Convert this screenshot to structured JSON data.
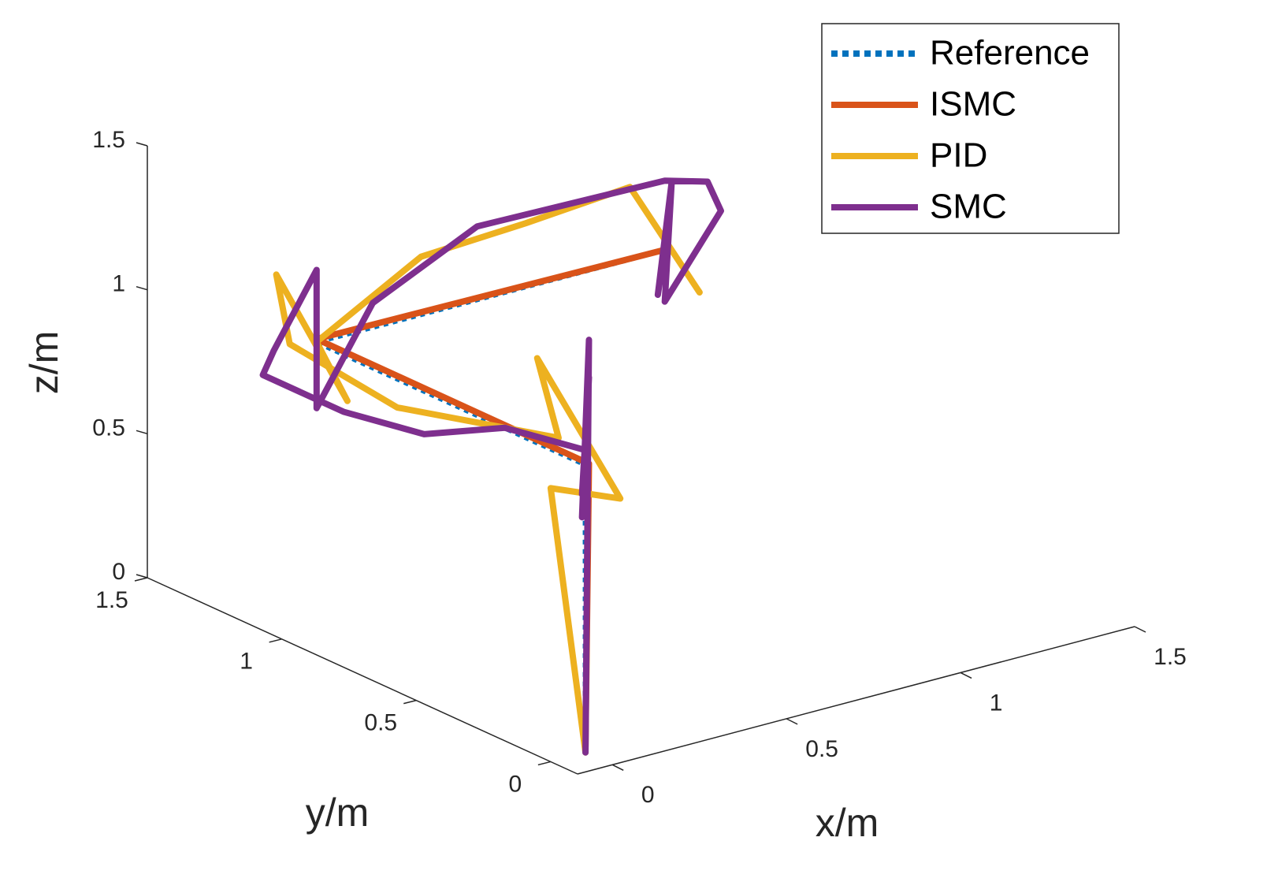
{
  "chart_data": {
    "type": "line3d",
    "xlabel": "x/m",
    "ylabel": "y/m",
    "zlabel": "z/m",
    "xlim": [
      -0.1,
      1.5
    ],
    "ylim": [
      -0.1,
      1.5
    ],
    "zlim": [
      0,
      1.5
    ],
    "xticks": [
      0,
      0.5,
      1,
      1.5
    ],
    "yticks": [
      0,
      0.5,
      1,
      1.5
    ],
    "zticks": [
      0,
      0.5,
      1,
      1.5
    ],
    "grid": false,
    "legend_position": "upper-right",
    "series": [
      {
        "name": "Reference",
        "color": "#0072BD",
        "style": "dotted",
        "x": [
          0,
          0,
          0,
          1
        ],
        "y": [
          0,
          0,
          1,
          1
        ],
        "z": [
          0,
          1,
          1,
          1
        ]
      },
      {
        "name": "ISMC",
        "color": "#D95319",
        "style": "solid",
        "x": [
          0,
          0.01,
          0,
          1
        ],
        "y": [
          0,
          0,
          1,
          1
        ],
        "z": [
          0.02,
          1,
          1.01,
          1
        ]
      },
      {
        "name": "PID",
        "color": "#EDB120",
        "style": "solid",
        "x": [
          0,
          -0.1,
          0.1,
          -0.1,
          0,
          0,
          0,
          0,
          0,
          0.05,
          0,
          0.3,
          0.6,
          0.9,
          1.1
        ],
        "y": [
          0,
          0,
          0,
          0.05,
          0.1,
          0.3,
          0.7,
          1.1,
          1.15,
          0.95,
          1,
          1,
          1,
          1,
          1
        ],
        "z": [
          0,
          0.95,
          0.85,
          1.38,
          1.05,
          1.0,
          0.9,
          0.95,
          1.17,
          0.8,
          1,
          1.2,
          1.22,
          1.25,
          0.82
        ]
      },
      {
        "name": "SMC",
        "color": "#7E2F8E",
        "style": "solid",
        "x": [
          0,
          0.01,
          -0.01,
          0.01,
          -0.01,
          0,
          0,
          0,
          0,
          0,
          0,
          0,
          0,
          0.2,
          0.5,
          1.0,
          1.2,
          1.2,
          1.0,
          1.02,
          0.98,
          1
        ],
        "y": [
          0,
          0,
          0,
          0,
          0,
          0,
          0.3,
          0.6,
          0.9,
          1.2,
          1.16,
          1,
          1,
          1.05,
          1.05,
          1,
          1.1,
          1.05,
          1,
          1,
          1,
          1
        ],
        "z": [
          0,
          1.43,
          0.82,
          1.3,
          0.9,
          1.05,
          1.0,
          0.85,
          0.8,
          0.8,
          0.9,
          1.25,
          0.77,
          1.05,
          1.22,
          1.24,
          1.13,
          1.05,
          0.82,
          1.23,
          0.85,
          1
        ]
      }
    ]
  }
}
